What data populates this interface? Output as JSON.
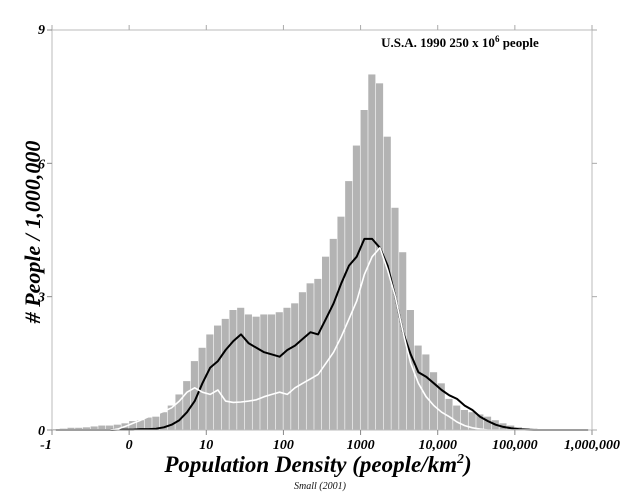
{
  "chart_data": {
    "type": "bar",
    "title": "U.S.A.  1990  250 x 10",
    "title_superscript": "6",
    "title_suffix": " people",
    "xlabel": "Population Density (people/km",
    "xlabel_superscript": "2",
    "xlabel_suffix": ")",
    "ylabel": "# People / 1,000,000",
    "source": "Small (2001)",
    "x_scale": "log10",
    "xlim": [
      -1,
      6
    ],
    "ylim": [
      0,
      9
    ],
    "xticks": [
      -1,
      0,
      1,
      2,
      3,
      4,
      5,
      6
    ],
    "xtick_labels": [
      "-1",
      "0",
      "10",
      "100",
      "1000",
      "10,000",
      "100,000",
      "1,000,000"
    ],
    "yticks": [
      0,
      3,
      6,
      9
    ],
    "ytick_labels": [
      "0",
      "3",
      "6",
      "9"
    ],
    "grid": false,
    "colors": {
      "histogram": "#b3b3b3",
      "line_black": "#000000",
      "line_white": "#ffffff"
    },
    "x": [
      -0.95,
      -0.85,
      -0.75,
      -0.65,
      -0.55,
      -0.45,
      -0.35,
      -0.25,
      -0.15,
      -0.05,
      0.05,
      0.15,
      0.25,
      0.35,
      0.45,
      0.55,
      0.65,
      0.75,
      0.85,
      0.95,
      1.05,
      1.15,
      1.25,
      1.35,
      1.45,
      1.55,
      1.65,
      1.75,
      1.85,
      1.95,
      2.05,
      2.15,
      2.25,
      2.35,
      2.45,
      2.55,
      2.65,
      2.75,
      2.85,
      2.95,
      3.05,
      3.15,
      3.25,
      3.35,
      3.45,
      3.55,
      3.65,
      3.75,
      3.85,
      3.95,
      4.05,
      4.15,
      4.25,
      4.35,
      4.45,
      4.55,
      4.65,
      4.75,
      4.85,
      4.95,
      5.05,
      5.15,
      5.25,
      5.35,
      5.45,
      5.55,
      5.65,
      5.75,
      5.85,
      5.95
    ],
    "series": [
      {
        "style": "gray-histogram",
        "values": [
          0.02,
          0.03,
          0.05,
          0.05,
          0.06,
          0.08,
          0.1,
          0.1,
          0.12,
          0.15,
          0.2,
          0.22,
          0.28,
          0.3,
          0.4,
          0.55,
          0.8,
          1.1,
          1.55,
          1.85,
          2.15,
          2.35,
          2.5,
          2.7,
          2.75,
          2.6,
          2.55,
          2.6,
          2.6,
          2.65,
          2.75,
          2.85,
          3.1,
          3.3,
          3.4,
          3.9,
          4.3,
          4.8,
          5.6,
          6.4,
          7.2,
          8.0,
          7.8,
          6.6,
          5.0,
          4.0,
          2.7,
          1.9,
          1.7,
          1.3,
          1.05,
          0.7,
          0.55,
          0.45,
          0.4,
          0.35,
          0.3,
          0.22,
          0.15,
          0.1,
          0.06,
          0.04,
          0.03,
          0.02,
          0.02,
          0.01,
          0.01,
          0.01,
          0,
          0
        ]
      },
      {
        "style": "black-line",
        "values": [
          0,
          0,
          0,
          0,
          0,
          0,
          0,
          0,
          0.01,
          0.01,
          0.01,
          0.02,
          0.02,
          0.03,
          0.06,
          0.12,
          0.22,
          0.4,
          0.65,
          1.05,
          1.4,
          1.55,
          1.8,
          2.0,
          2.15,
          1.95,
          1.85,
          1.75,
          1.7,
          1.65,
          1.8,
          1.9,
          2.05,
          2.2,
          2.15,
          2.5,
          2.85,
          3.3,
          3.7,
          3.9,
          4.3,
          4.3,
          4.1,
          3.7,
          3.0,
          2.2,
          1.7,
          1.3,
          1.2,
          1.05,
          0.9,
          0.78,
          0.7,
          0.55,
          0.45,
          0.3,
          0.2,
          0.12,
          0.07,
          0.04,
          0.02,
          0.01,
          0,
          0,
          0,
          0,
          0,
          0,
          0,
          0
        ]
      },
      {
        "style": "white-line",
        "values": [
          0,
          0,
          0,
          0,
          0,
          0,
          0,
          0,
          0.02,
          0.08,
          0.15,
          0.22,
          0.3,
          0.35,
          0.42,
          0.5,
          0.65,
          0.85,
          0.95,
          0.85,
          0.8,
          0.9,
          0.65,
          0.62,
          0.63,
          0.65,
          0.68,
          0.75,
          0.8,
          0.85,
          0.8,
          0.95,
          1.05,
          1.15,
          1.25,
          1.5,
          1.75,
          2.1,
          2.5,
          2.9,
          3.5,
          3.9,
          4.1,
          3.6,
          3.0,
          2.2,
          1.5,
          1.05,
          0.75,
          0.55,
          0.4,
          0.3,
          0.18,
          0.1,
          0.05,
          0.02,
          0,
          0,
          0,
          0,
          0,
          0,
          0,
          0,
          0,
          0,
          0,
          0,
          0,
          0
        ]
      }
    ]
  }
}
